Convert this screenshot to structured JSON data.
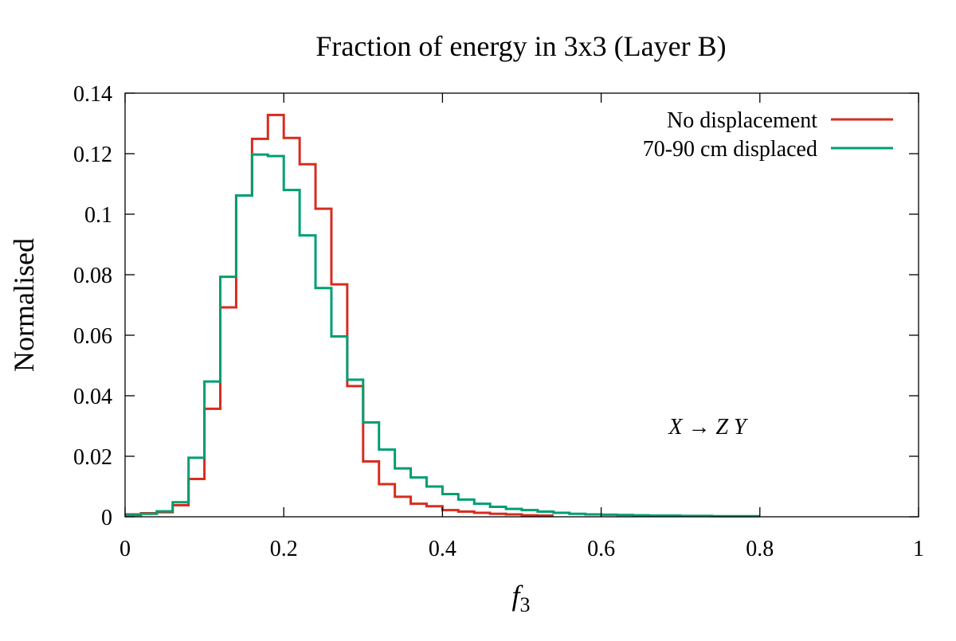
{
  "chart_data": {
    "type": "line",
    "step": true,
    "title": "Fraction of energy in 3x3 (Layer B)",
    "xlabel": "f",
    "xlabel_subscript": "3",
    "ylabel": "Normalised",
    "xlim": [
      0,
      1
    ],
    "ylim": [
      0,
      0.14
    ],
    "xticks": [
      0,
      0.2,
      0.4,
      0.6,
      0.8,
      1
    ],
    "xtick_labels": [
      "0",
      "0.2",
      "0.4",
      "0.6",
      "0.8",
      "1"
    ],
    "yticks": [
      0,
      0.02,
      0.04,
      0.06,
      0.08,
      0.1,
      0.12,
      0.14
    ],
    "ytick_labels": [
      "0",
      "0.02",
      "0.04",
      "0.06",
      "0.08",
      "0.1",
      "0.12",
      "0.14"
    ],
    "grid": false,
    "legend_position": "top-right",
    "annotation": "X → Z Y",
    "bin_width": 0.02,
    "series": [
      {
        "name": "No displacement",
        "color": "#d62d20",
        "bin_start": 0,
        "values": [
          0.0008,
          0.0012,
          0.0015,
          0.0038,
          0.0125,
          0.0357,
          0.0692,
          0.1062,
          0.1249,
          0.1328,
          0.1252,
          0.1165,
          0.1018,
          0.0768,
          0.0432,
          0.0183,
          0.0108,
          0.0066,
          0.0043,
          0.0035,
          0.0022,
          0.0017,
          0.0013,
          0.001,
          0.0008,
          0.0005,
          0.0004
        ]
      },
      {
        "name": "70-90 cm displaced",
        "color": "#009e73",
        "bin_start": 0,
        "values": [
          0.0006,
          0.001,
          0.0018,
          0.0048,
          0.0195,
          0.0447,
          0.0793,
          0.1062,
          0.1197,
          0.1192,
          0.108,
          0.093,
          0.0756,
          0.0596,
          0.0453,
          0.0312,
          0.0222,
          0.016,
          0.013,
          0.01,
          0.0075,
          0.0057,
          0.0043,
          0.0033,
          0.0026,
          0.0022,
          0.0017,
          0.0013,
          0.001,
          0.0008,
          0.0007,
          0.0006,
          0.0005,
          0.0004,
          0.0004,
          0.0003,
          0.0003,
          0.0002,
          0.0002,
          0.0002
        ]
      }
    ]
  }
}
